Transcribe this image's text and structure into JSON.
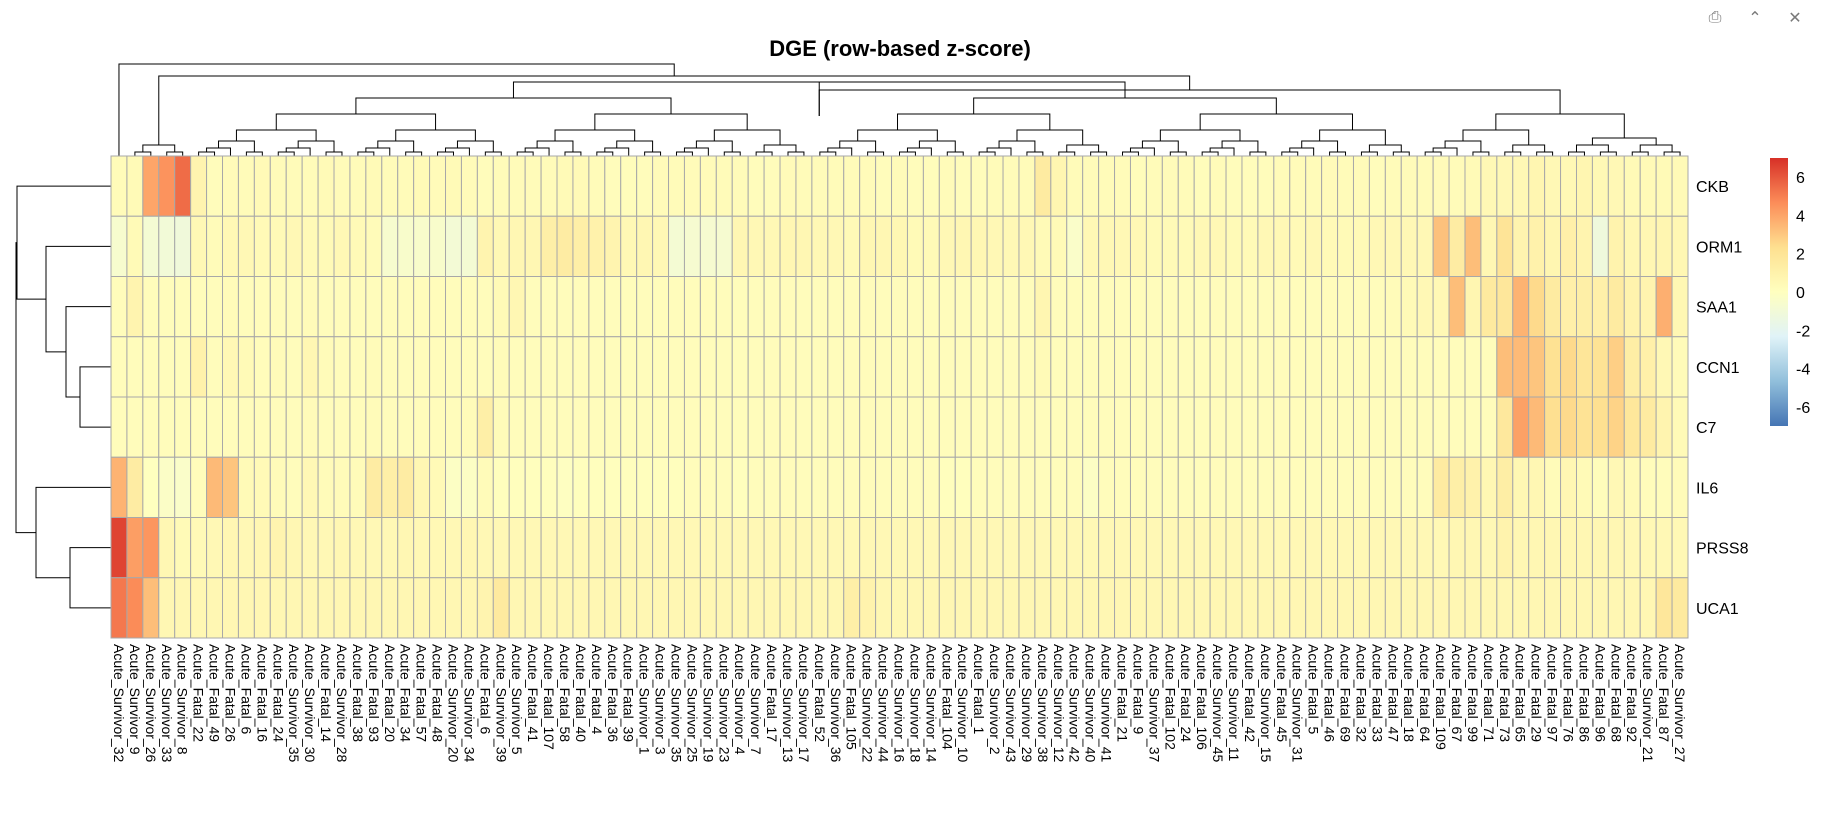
{
  "toolbar": {
    "buttons": [
      {
        "name": "export-icon",
        "glyph": "⎙"
      },
      {
        "name": "collapse-icon",
        "glyph": "⌃"
      },
      {
        "name": "close-icon",
        "glyph": "✕"
      }
    ]
  },
  "chart_data": {
    "type": "heatmap",
    "title": "DGE (row-based z-score)",
    "rows": [
      "CKB",
      "ORM1",
      "SAA1",
      "CCN1",
      "C7",
      "IL6",
      "PRSS8",
      "UCA1"
    ],
    "columns": [
      "Acute_Survivor_32",
      "Acute_Survivor_9",
      "Acute_Survivor_26",
      "Acute_Survivor_33",
      "Acute_Survivor_8",
      "Acute_Fatal_22",
      "Acute_Fatal_49",
      "Acute_Fatal_26",
      "Acute_Fatal_6",
      "Acute_Fatal_16",
      "Acute_Fatal_24",
      "Acute_Survivor_35",
      "Acute_Survivor_30",
      "Acute_Fatal_14",
      "Acute_Survivor_28",
      "Acute_Fatal_38",
      "Acute_Fatal_93",
      "Acute_Fatal_20",
      "Acute_Fatal_34",
      "Acute_Fatal_57",
      "Acute_Fatal_48",
      "Acute_Survivor_20",
      "Acute_Survivor_34",
      "Acute_Fatal_6",
      "Acute_Survivor_39",
      "Acute_Survivor_5",
      "Acute_Fatal_41",
      "Acute_Fatal_107",
      "Acute_Fatal_58",
      "Acute_Fatal_40",
      "Acute_Fatal_4",
      "Acute_Fatal_36",
      "Acute_Fatal_39",
      "Acute_Survivor_1",
      "Acute_Survivor_3",
      "Acute_Survivor_35",
      "Acute_Survivor_25",
      "Acute_Survivor_19",
      "Acute_Survivor_23",
      "Acute_Survivor_4",
      "Acute_Survivor_7",
      "Acute_Fatal_17",
      "Acute_Survivor_13",
      "Acute_Survivor_17",
      "Acute_Fatal_52",
      "Acute_Survivor_36",
      "Acute_Fatal_105",
      "Acute_Survivor_22",
      "Acute_Survivor_44",
      "Acute_Survivor_16",
      "Acute_Survivor_18",
      "Acute_Survivor_14",
      "Acute_Fatal_104",
      "Acute_Survivor_10",
      "Acute_Fatal_1",
      "Acute_Survivor_2",
      "Acute_Survivor_43",
      "Acute_Survivor_29",
      "Acute_Survivor_38",
      "Acute_Survivor_12",
      "Acute_Survivor_42",
      "Acute_Survivor_40",
      "Acute_Survivor_41",
      "Acute_Fatal_21",
      "Acute_Fatal_9",
      "Acute_Survivor_37",
      "Acute_Fatal_102",
      "Acute_Fatal_24",
      "Acute_Fatal_106",
      "Acute_Survivor_45",
      "Acute_Survivor_11",
      "Acute_Fatal_42",
      "Acute_Survivor_15",
      "Acute_Fatal_45",
      "Acute_Survivor_31",
      "Acute_Fatal_5",
      "Acute_Fatal_46",
      "Acute_Fatal_69",
      "Acute_Fatal_32",
      "Acute_Fatal_33",
      "Acute_Fatal_47",
      "Acute_Fatal_18",
      "Acute_Fatal_64",
      "Acute_Fatal_109",
      "Acute_Fatal_67",
      "Acute_Fatal_99",
      "Acute_Fatal_71",
      "Acute_Fatal_73",
      "Acute_Fatal_65",
      "Acute_Fatal_29",
      "Acute_Fatal_97",
      "Acute_Fatal_76",
      "Acute_Fatal_86",
      "Acute_Fatal_96",
      "Acute_Fatal_68",
      "Acute_Fatal_92",
      "Acute_Survivor_21",
      "Acute_Fatal_87",
      "Acute_Survivor_27"
    ],
    "values": [
      [
        0.3,
        0.4,
        4,
        4.5,
        5.5,
        0.8,
        0.2,
        0.3,
        0.3,
        0.4,
        0.3,
        0.3,
        0.3,
        0.4,
        0.3,
        0.3,
        0.4,
        0.3,
        0.3,
        0.4,
        0.3,
        0.4,
        0.3,
        0.2,
        0.3,
        0.3,
        0.3,
        0.3,
        0.4,
        0.4,
        0.3,
        0.2,
        0.2,
        0.2,
        0.3,
        0.3,
        0.3,
        0.3,
        0.3,
        0.3,
        0.2,
        0.2,
        0.3,
        0.3,
        0.3,
        0.3,
        0.3,
        0.3,
        0.2,
        0.3,
        0.2,
        0.2,
        0.3,
        0.2,
        0.2,
        0.3,
        0.3,
        0.3,
        1.5,
        0.7,
        0.3,
        0.3,
        0.3,
        0.3,
        0.2,
        0.3,
        0.3,
        0.3,
        0.2,
        0.3,
        0.2,
        0.2,
        0.2,
        0.3,
        0.3,
        0.3,
        0.3,
        0.3,
        0.3,
        0.2,
        0.3,
        0.3,
        0.3,
        0.3,
        0.3,
        0.4,
        0.5,
        0.5,
        0.5,
        0.7,
        0.5,
        0.5,
        0.7,
        0.5,
        0.5,
        0.4,
        0.4,
        0.4,
        0.4
      ],
      [
        -0.6,
        0.4,
        -0.8,
        -1,
        -1.1,
        0.5,
        0.3,
        0.5,
        0.5,
        0.4,
        0.4,
        0.5,
        0.4,
        0.4,
        0.5,
        0.4,
        0.3,
        -0.6,
        -0.5,
        -0.5,
        -0.5,
        -0.9,
        -0.8,
        0.8,
        0.5,
        0.6,
        0.6,
        1.2,
        1.4,
        1.2,
        1,
        0.8,
        0.5,
        0.6,
        0.5,
        -0.8,
        -0.7,
        -0.7,
        -0.7,
        0.6,
        0.5,
        0.5,
        0.6,
        0.6,
        0.5,
        0.5,
        0.4,
        0.6,
        0.6,
        0.6,
        0.4,
        0.4,
        0.5,
        0.6,
        0.6,
        0.5,
        0.5,
        0.5,
        0.4,
        0.4,
        -0.4,
        0.5,
        0.5,
        0.5,
        0.5,
        0.4,
        0.4,
        0.4,
        0.5,
        0.5,
        0.4,
        0.4,
        0.5,
        0.5,
        0.4,
        0.5,
        0.4,
        0.4,
        0.4,
        0.5,
        0.5,
        0.5,
        0.5,
        3.2,
        1.4,
        3.3,
        0.6,
        2,
        0.8,
        1,
        0.7,
        1.1,
        0.8,
        -1.2,
        0.9,
        0.6,
        0.6,
        0.7,
        0.6
      ],
      [
        0.2,
        0.8,
        0.2,
        0.2,
        0.2,
        0.2,
        0.2,
        0.3,
        0.2,
        0.2,
        0.2,
        0.2,
        0.3,
        0.2,
        0.2,
        0.2,
        0.2,
        0.2,
        0.2,
        0.2,
        0.2,
        0.2,
        0.2,
        0.2,
        0.4,
        0.6,
        0.2,
        0.2,
        0.2,
        0.2,
        0.2,
        0.2,
        0.2,
        0.2,
        0.2,
        0.2,
        0.2,
        0.2,
        0.2,
        0.2,
        0.2,
        0.2,
        0.2,
        0.2,
        0.2,
        0.2,
        0.2,
        0.2,
        0.2,
        0.2,
        0.2,
        0.2,
        0.2,
        0.2,
        0.2,
        0.2,
        0.2,
        0.2,
        0.7,
        0.2,
        0.2,
        0.2,
        0.2,
        0.2,
        0.2,
        0.2,
        0.2,
        0.2,
        0.2,
        0.2,
        0.2,
        0.2,
        0.2,
        0.2,
        0.2,
        0.2,
        0.2,
        0.2,
        0.2,
        0.2,
        0.3,
        0.4,
        0.5,
        0.5,
        3.3,
        0.7,
        1.6,
        1.8,
        3.6,
        2.5,
        1.5,
        1.1,
        1.2,
        1.1,
        1.5,
        0.9,
        0.8,
        3.7,
        0.6
      ],
      [
        0.2,
        0.2,
        0.2,
        0.2,
        0.2,
        1,
        0.2,
        0.5,
        0.4,
        0.2,
        0.3,
        0.2,
        0.6,
        0.3,
        0.2,
        0.2,
        0.3,
        0.2,
        0.2,
        0.2,
        0.2,
        0.2,
        0.2,
        0.2,
        0.3,
        0.2,
        0.2,
        0.2,
        0.2,
        0.2,
        0.2,
        0.2,
        0.2,
        0.2,
        0.2,
        0.2,
        0.2,
        0.2,
        0.2,
        0.2,
        0.2,
        0.2,
        0.2,
        0.2,
        0.2,
        0.2,
        0.2,
        0.2,
        0.2,
        0.2,
        0.2,
        0.2,
        0.2,
        0.2,
        0.2,
        0.2,
        0.2,
        0.2,
        0.4,
        0.2,
        0.2,
        0.2,
        0.2,
        0.2,
        0.2,
        0.2,
        0.2,
        0.2,
        0.2,
        0.2,
        0.2,
        0.2,
        0.2,
        0.2,
        0.2,
        0.2,
        0.2,
        0.2,
        0.2,
        0.2,
        0.2,
        0.2,
        0.2,
        0.2,
        0.2,
        0.2,
        0.2,
        3.3,
        3.4,
        3.1,
        2.2,
        2.5,
        1.9,
        2.1,
        2.8,
        1.3,
        1.1,
        0.5,
        0.3
      ],
      [
        0.2,
        0.2,
        0.2,
        0.2,
        0.2,
        0.2,
        0.2,
        0.2,
        0.2,
        0.2,
        0.2,
        0.2,
        0.3,
        0.2,
        0.2,
        0.2,
        0.3,
        0.2,
        0.2,
        0.2,
        0.2,
        0.2,
        0.3,
        1.2,
        0.3,
        0.2,
        0.2,
        0.2,
        0.2,
        0.2,
        0.2,
        0.2,
        0.2,
        0.2,
        0.2,
        0.2,
        0.2,
        0.2,
        0.2,
        0.2,
        0.2,
        0.2,
        0.2,
        0.2,
        0.2,
        0.2,
        0.2,
        0.2,
        0.2,
        0.2,
        0.2,
        0.2,
        0.2,
        0.2,
        0.2,
        0.2,
        0.2,
        0.2,
        0.2,
        0.2,
        0.2,
        0.2,
        0.2,
        0.2,
        0.2,
        0.2,
        0.2,
        0.2,
        0.2,
        0.2,
        0.2,
        0.2,
        0.2,
        0.2,
        0.2,
        0.2,
        0.2,
        0.2,
        0.2,
        0.2,
        0.2,
        0.2,
        0.2,
        0.2,
        0.2,
        0.2,
        0.2,
        1.7,
        4.1,
        3.4,
        2.3,
        2.5,
        2.1,
        2.3,
        2.7,
        1.8,
        1.5,
        0.8,
        0.4
      ],
      [
        3.6,
        1.4,
        0,
        -0.3,
        -0.4,
        0.2,
        3.4,
        3.1,
        0.4,
        0.4,
        0.3,
        0.2,
        0.5,
        0.3,
        0.3,
        0.3,
        1.4,
        1.2,
        1.4,
        0.6,
        0.4,
        -0.2,
        -0.2,
        0.3,
        0.1,
        0.1,
        0.1,
        0.1,
        -0.1,
        0.1,
        0.1,
        0.1,
        0.1,
        0.1,
        0.1,
        0.1,
        0.2,
        0.2,
        0.2,
        0.1,
        0.2,
        0.2,
        0.2,
        0.2,
        0.2,
        0.2,
        0.2,
        0.2,
        0.2,
        0.2,
        0.2,
        0.2,
        0.1,
        0.1,
        0.2,
        0.2,
        0.2,
        0.2,
        0.2,
        0.2,
        0.2,
        -0.2,
        0.2,
        0.2,
        0.2,
        0.2,
        0.2,
        0.2,
        0.2,
        0.2,
        0.2,
        0.2,
        0.2,
        0.2,
        0.2,
        0.2,
        0.2,
        0.2,
        0.2,
        0.2,
        0.2,
        0.2,
        0.2,
        1.5,
        1.2,
        1,
        0.6,
        1.3,
        0.6,
        0.6,
        0.3,
        0.6,
        0.4,
        0.2,
        0.5,
        0.4,
        0.2,
        0.2,
        0.3
      ],
      [
        6.5,
        4.2,
        4.4,
        0.6,
        0.4,
        0.4,
        0.5,
        0.6,
        0.5,
        0.6,
        0.8,
        0.6,
        0.5,
        0.5,
        0.6,
        0.5,
        0.5,
        0.5,
        0.6,
        0.5,
        0.5,
        0.5,
        0.6,
        0.5,
        0.5,
        0.5,
        0.5,
        0.5,
        0.5,
        0.5,
        0.5,
        0.5,
        0.5,
        0.5,
        0.5,
        0.5,
        0.5,
        0.5,
        0.5,
        0.5,
        0.5,
        0.5,
        0.5,
        0.5,
        0.5,
        0.5,
        0.5,
        0.5,
        0.5,
        0.5,
        0.5,
        0.5,
        0.5,
        0.5,
        0.5,
        0.5,
        0.5,
        0.5,
        0.5,
        0.5,
        0.5,
        0.5,
        0.5,
        0.5,
        0.5,
        0.5,
        0.5,
        0.5,
        0.5,
        0.5,
        0.5,
        0.5,
        0.5,
        0.5,
        0.5,
        0.5,
        0.5,
        0.5,
        0.5,
        0.5,
        0.5,
        0.5,
        0.5,
        0.5,
        0.6,
        0.6,
        0.5,
        0.9,
        0.6,
        0.6,
        0.6,
        0.6,
        0.6,
        0.6,
        0.6,
        0.5,
        0.5,
        0.5,
        0.5
      ],
      [
        5.2,
        4.7,
        3.3,
        0.6,
        0.6,
        0.6,
        0.6,
        0.6,
        0.6,
        0.6,
        0.6,
        0.6,
        0.6,
        0.6,
        0.6,
        0.6,
        0.6,
        0.6,
        0.6,
        0.6,
        0.6,
        0.6,
        0.6,
        0.8,
        1.6,
        0.6,
        0.6,
        0.6,
        0.6,
        0.6,
        0.6,
        0.6,
        0.6,
        0.6,
        0.6,
        0.6,
        0.6,
        0.6,
        0.6,
        0.6,
        0.6,
        0.6,
        0.6,
        0.6,
        0.6,
        0.6,
        1.2,
        0.9,
        0.6,
        0.6,
        0.6,
        0.6,
        0.6,
        0.6,
        0.6,
        0.6,
        0.6,
        0.6,
        0.6,
        0.6,
        0.6,
        0.6,
        0.6,
        0.6,
        0.6,
        0.6,
        0.6,
        0.6,
        0.6,
        0.6,
        0.6,
        0.6,
        0.6,
        0.6,
        0.6,
        0.6,
        0.6,
        0.6,
        0.6,
        0.6,
        0.6,
        0.6,
        0.6,
        0.6,
        0.6,
        0.6,
        0.6,
        0.6,
        0.6,
        0.6,
        0.6,
        0.6,
        0.6,
        0.6,
        0.6,
        0.6,
        0.6,
        1.8,
        1.6
      ]
    ],
    "legend_ticks": [
      6,
      4,
      2,
      0,
      -2,
      -4,
      -6
    ],
    "color_scale": [
      "#4575b4",
      "#91bfdb",
      "#e0f3f8",
      "#ffffbf",
      "#fee090",
      "#fc8d59",
      "#d73027"
    ],
    "value_range": [
      -7,
      7
    ]
  }
}
